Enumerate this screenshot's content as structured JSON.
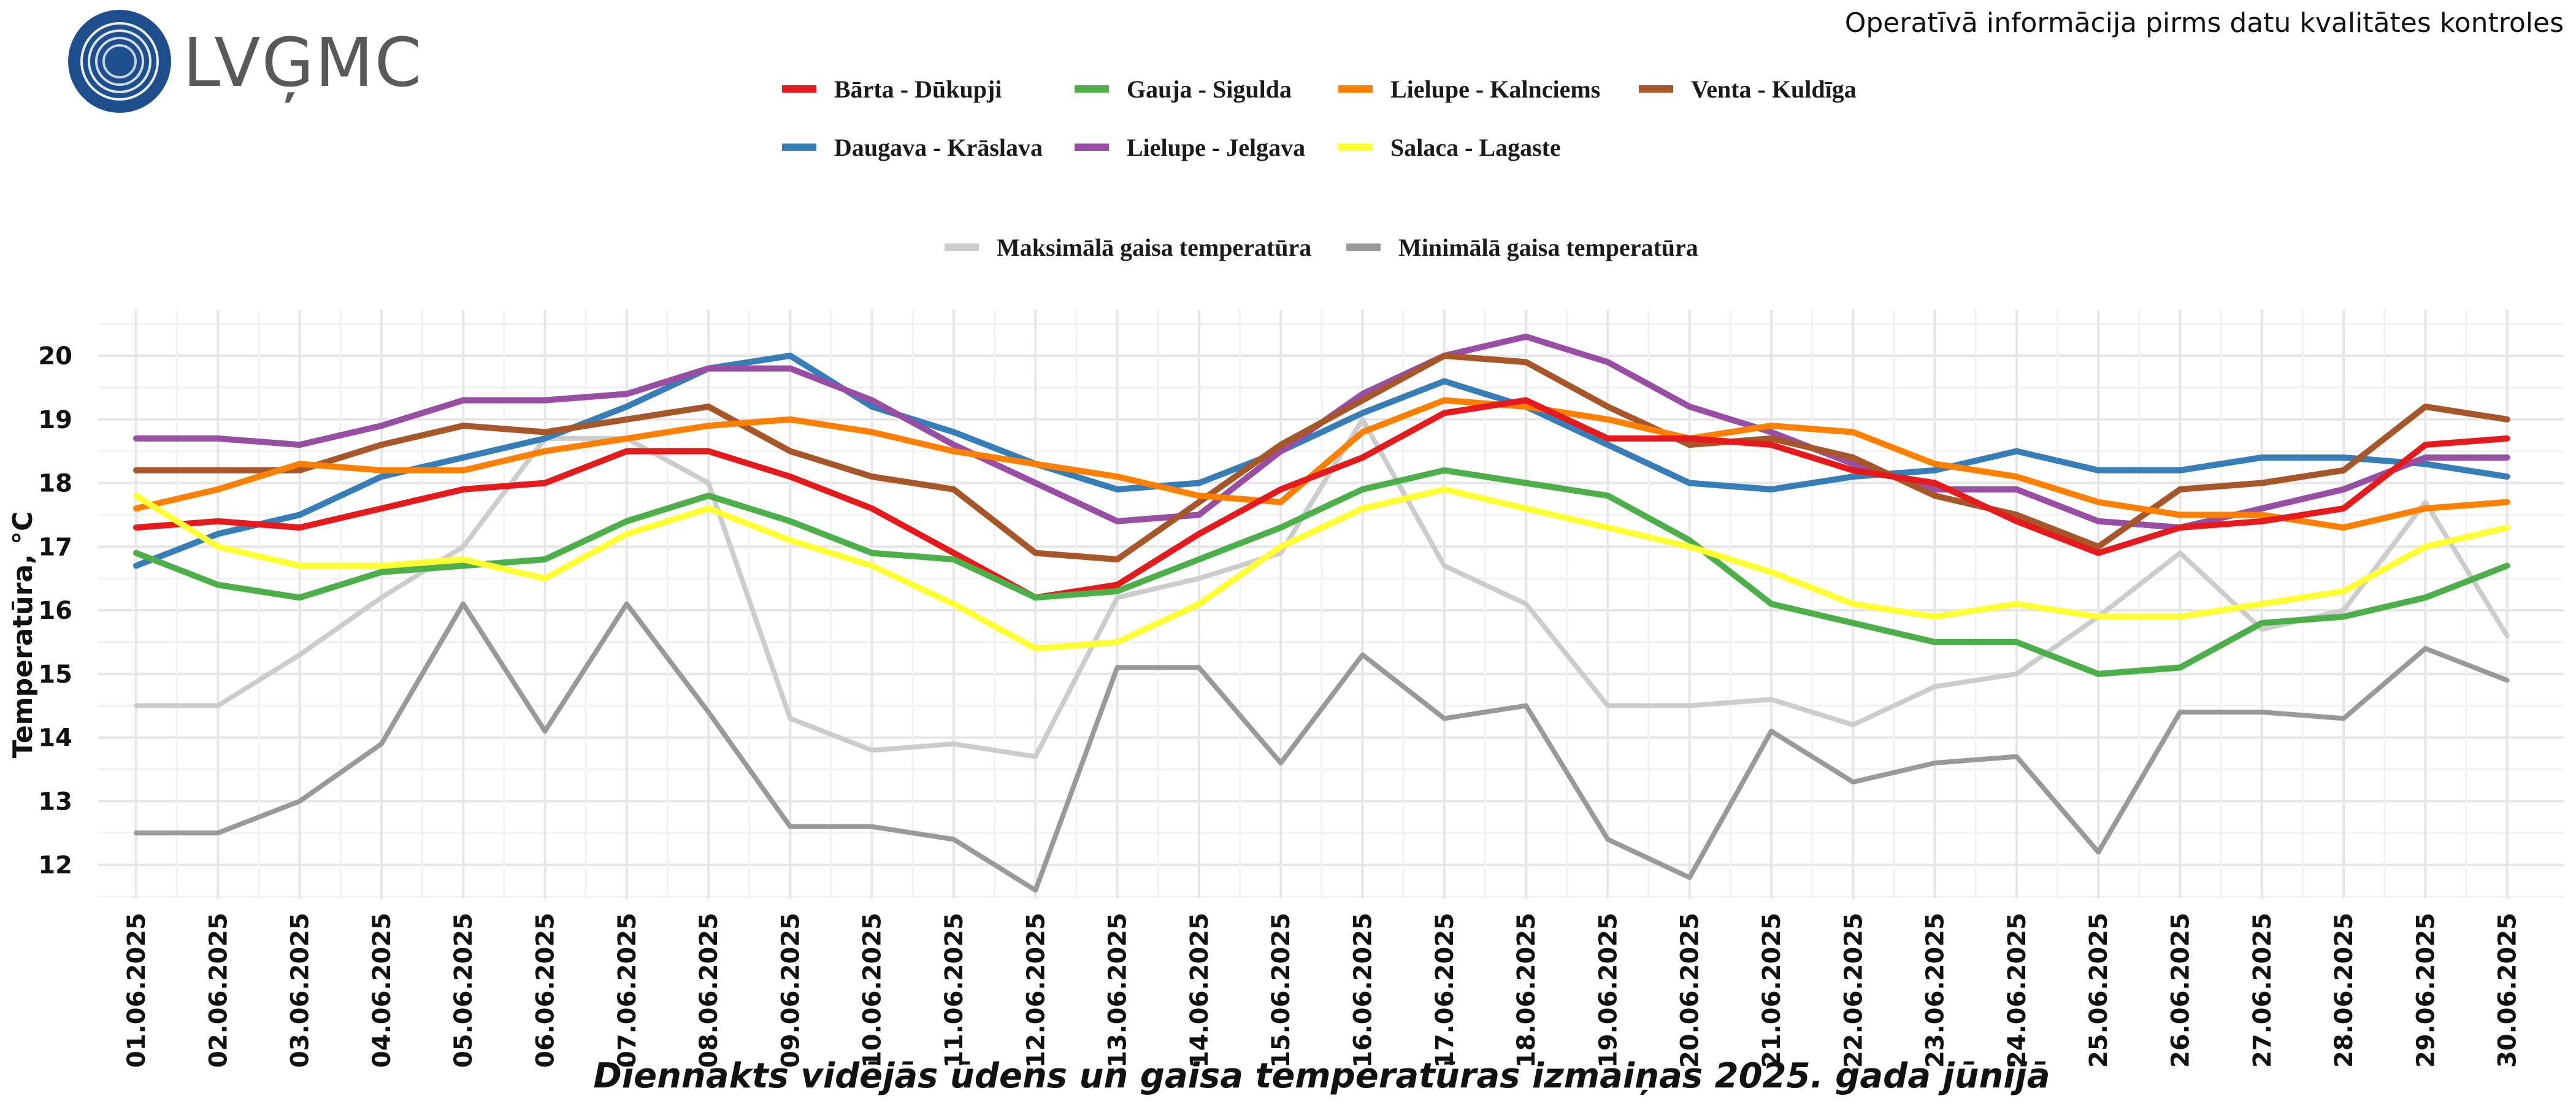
{
  "header": {
    "logo_text": "LVĢMC",
    "note": "Operatīvā informācija pirms datu kvalitātes kontroles"
  },
  "colors": {
    "barta": "#e41a1c",
    "gauja": "#4daf4a",
    "lielupe_kalnciems": "#ff7f00",
    "venta": "#a65628",
    "daugava": "#377eb8",
    "lielupe_jelgava": "#984ea3",
    "salaca": "#ffff33",
    "tmax": "#cccccc",
    "tmin": "#999999",
    "logo": "#1f4e8c"
  },
  "chart_data": {
    "type": "line",
    "title": "Diennakts vidējās ūdens un gaisa temperatūras izmaiņas 2025. gada jūnijā",
    "xlabel": "",
    "ylabel": "Temperatūra, °C",
    "ylim": [
      11.5,
      20.7
    ],
    "yticks": [
      12,
      13,
      14,
      15,
      16,
      17,
      18,
      19,
      20
    ],
    "grid": true,
    "legend_position": "top",
    "x": [
      "01.06.2025",
      "02.06.2025",
      "03.06.2025",
      "04.06.2025",
      "05.06.2025",
      "06.06.2025",
      "07.06.2025",
      "08.06.2025",
      "09.06.2025",
      "10.06.2025",
      "11.06.2025",
      "12.06.2025",
      "13.06.2025",
      "14.06.2025",
      "15.06.2025",
      "16.06.2025",
      "17.06.2025",
      "18.06.2025",
      "19.06.2025",
      "20.06.2025",
      "21.06.2025",
      "22.06.2025",
      "23.06.2025",
      "24.06.2025",
      "25.06.2025",
      "26.06.2025",
      "27.06.2025",
      "28.06.2025",
      "29.06.2025",
      "30.06.2025"
    ],
    "series": [
      {
        "name": "Maksimālā gaisa temperatūra",
        "color_key": "tmax",
        "width": 8,
        "values": [
          14.5,
          14.5,
          15.3,
          16.2,
          17.0,
          18.7,
          18.7,
          18.0,
          14.3,
          13.8,
          13.9,
          13.7,
          16.2,
          16.5,
          16.9,
          19.0,
          16.7,
          16.1,
          14.5,
          14.5,
          14.6,
          14.2,
          14.8,
          15.0,
          15.9,
          16.9,
          15.7,
          16.0,
          17.7,
          15.6
        ]
      },
      {
        "name": "Minimālā gaisa temperatūra",
        "color_key": "tmin",
        "width": 8,
        "values": [
          12.5,
          12.5,
          13.0,
          13.9,
          16.1,
          14.1,
          16.1,
          14.4,
          12.6,
          12.6,
          12.4,
          11.6,
          15.1,
          15.1,
          13.6,
          15.3,
          14.3,
          14.5,
          12.4,
          11.8,
          14.1,
          13.3,
          13.6,
          13.7,
          12.2,
          14.4,
          14.4,
          14.3,
          15.4,
          14.9
        ]
      },
      {
        "name": "Daugava - Krāslava",
        "color_key": "daugava",
        "width": 10,
        "values": [
          16.7,
          17.2,
          17.5,
          18.1,
          18.4,
          18.7,
          19.2,
          19.8,
          20.0,
          19.2,
          18.8,
          18.3,
          17.9,
          18.0,
          18.5,
          19.1,
          19.6,
          19.2,
          18.6,
          18.0,
          17.9,
          18.1,
          18.2,
          18.5,
          18.2,
          18.2,
          18.4,
          18.4,
          18.3,
          18.1
        ]
      },
      {
        "name": "Lielupe - Jelgava",
        "color_key": "lielupe_jelgava",
        "width": 10,
        "values": [
          18.7,
          18.7,
          18.6,
          18.9,
          19.3,
          19.3,
          19.4,
          19.8,
          19.8,
          19.3,
          18.6,
          18.0,
          17.4,
          17.5,
          18.5,
          19.4,
          20.0,
          20.3,
          19.9,
          19.2,
          18.8,
          18.3,
          17.9,
          17.9,
          17.4,
          17.3,
          17.6,
          17.9,
          18.4,
          18.4
        ]
      },
      {
        "name": "Venta - Kuldīga",
        "color_key": "venta",
        "width": 10,
        "values": [
          18.2,
          18.2,
          18.2,
          18.6,
          18.9,
          18.8,
          19.0,
          19.2,
          18.5,
          18.1,
          17.9,
          16.9,
          16.8,
          17.7,
          18.6,
          19.3,
          20.0,
          19.9,
          19.2,
          18.6,
          18.7,
          18.4,
          17.8,
          17.5,
          17.0,
          17.9,
          18.0,
          18.2,
          19.2,
          19.0
        ]
      },
      {
        "name": "Lielupe - Kalnciems",
        "color_key": "lielupe_kalnciems",
        "width": 10,
        "values": [
          17.6,
          17.9,
          18.3,
          18.2,
          18.2,
          18.5,
          18.7,
          18.9,
          19.0,
          18.8,
          18.5,
          18.3,
          18.1,
          17.8,
          17.7,
          18.8,
          19.3,
          19.2,
          19.0,
          18.7,
          18.9,
          18.8,
          18.3,
          18.1,
          17.7,
          17.5,
          17.5,
          17.3,
          17.6,
          17.7
        ]
      },
      {
        "name": "Bārta - Dūkupji",
        "color_key": "barta",
        "width": 10,
        "values": [
          17.3,
          17.4,
          17.3,
          17.6,
          17.9,
          18.0,
          18.5,
          18.5,
          18.1,
          17.6,
          16.9,
          16.2,
          16.4,
          17.2,
          17.9,
          18.4,
          19.1,
          19.3,
          18.7,
          18.7,
          18.6,
          18.2,
          18.0,
          17.4,
          16.9,
          17.3,
          17.4,
          17.6,
          18.6,
          18.7
        ]
      },
      {
        "name": "Gauja - Sigulda",
        "color_key": "gauja",
        "width": 10,
        "values": [
          16.9,
          16.4,
          16.2,
          16.6,
          16.7,
          16.8,
          17.4,
          17.8,
          17.4,
          16.9,
          16.8,
          16.2,
          16.3,
          16.8,
          17.3,
          17.9,
          18.2,
          18.0,
          17.8,
          17.1,
          16.1,
          15.8,
          15.5,
          15.5,
          15.0,
          15.1,
          15.8,
          15.9,
          16.2,
          16.7
        ]
      },
      {
        "name": "Salaca - Lagaste",
        "color_key": "salaca",
        "width": 10,
        "values": [
          17.8,
          17.0,
          16.7,
          16.7,
          16.8,
          16.5,
          17.2,
          17.6,
          17.1,
          16.7,
          16.1,
          15.4,
          15.5,
          16.1,
          17.0,
          17.6,
          17.9,
          17.6,
          17.3,
          17.0,
          16.6,
          16.1,
          15.9,
          16.1,
          15.9,
          15.9,
          16.1,
          16.3,
          17.0,
          17.3
        ]
      }
    ],
    "legend": [
      {
        "name": "Bārta - Dūkupji",
        "color_key": "barta"
      },
      {
        "name": "Gauja - Sigulda",
        "color_key": "gauja"
      },
      {
        "name": "Lielupe - Kalnciems",
        "color_key": "lielupe_kalnciems"
      },
      {
        "name": "Venta - Kuldīga",
        "color_key": "venta"
      },
      {
        "name": "Daugava - Krāslava",
        "color_key": "daugava"
      },
      {
        "name": "Lielupe - Jelgava",
        "color_key": "lielupe_jelgava"
      },
      {
        "name": "Salaca - Lagaste",
        "color_key": "salaca"
      },
      {
        "name": "Maksimālā gaisa temperatūra",
        "color_key": "tmax"
      },
      {
        "name": "Minimālā gaisa temperatūra",
        "color_key": "tmin"
      }
    ]
  }
}
